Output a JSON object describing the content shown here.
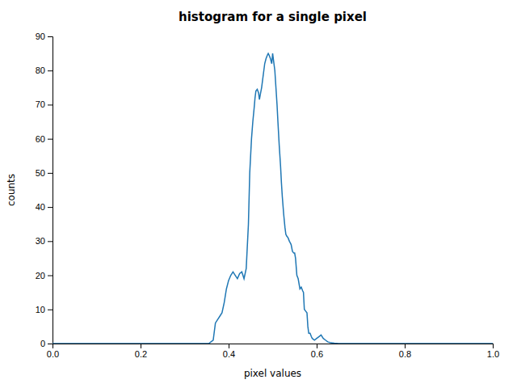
{
  "chart_data": {
    "type": "line",
    "title": "histogram for a single pixel",
    "xlabel": "pixel values",
    "ylabel": "counts",
    "color": "#1f77b4",
    "xlim": [
      0.0,
      1.0
    ],
    "ylim": [
      0,
      90
    ],
    "xticks": [
      {
        "value": 0,
        "label": "0.0"
      },
      {
        "value": 0.2,
        "label": "0.2"
      },
      {
        "value": 0.4,
        "label": "0.4"
      },
      {
        "value": 0.6,
        "label": "0.6"
      },
      {
        "value": 0.8,
        "label": "0.8"
      },
      {
        "value": 1.0,
        "label": "1.0"
      }
    ],
    "yticks": [
      0,
      10,
      20,
      30,
      40,
      50,
      60,
      70,
      80,
      90
    ],
    "x": [
      0.0,
      0.1,
      0.2,
      0.3,
      0.33,
      0.355,
      0.36,
      0.365,
      0.37,
      0.375,
      0.38,
      0.385,
      0.39,
      0.395,
      0.4,
      0.405,
      0.41,
      0.415,
      0.42,
      0.425,
      0.43,
      0.435,
      0.44,
      0.445,
      0.448,
      0.45,
      0.452,
      0.455,
      0.458,
      0.46,
      0.462,
      0.465,
      0.468,
      0.47,
      0.472,
      0.475,
      0.478,
      0.48,
      0.482,
      0.485,
      0.488,
      0.49,
      0.492,
      0.495,
      0.498,
      0.5,
      0.502,
      0.505,
      0.508,
      0.51,
      0.512,
      0.515,
      0.518,
      0.52,
      0.522,
      0.525,
      0.528,
      0.53,
      0.532,
      0.535,
      0.538,
      0.54,
      0.542,
      0.545,
      0.548,
      0.55,
      0.552,
      0.555,
      0.558,
      0.56,
      0.562,
      0.565,
      0.568,
      0.57,
      0.572,
      0.575,
      0.578,
      0.58,
      0.582,
      0.585,
      0.588,
      0.59,
      0.595,
      0.6,
      0.605,
      0.61,
      0.615,
      0.62,
      0.625,
      0.63,
      0.635,
      0.64,
      0.645,
      0.65,
      0.66,
      0.7,
      0.75,
      0.8,
      1.0
    ],
    "values": [
      0.0,
      0.0,
      0.0,
      0.0,
      0.0,
      0.0,
      0.5,
      1.0,
      6.0,
      7.0,
      8.0,
      9.0,
      12.0,
      16.0,
      18.5,
      20.0,
      21.0,
      20.0,
      19.0,
      20.5,
      21.0,
      19.0,
      22.0,
      35.0,
      50.0,
      55.0,
      60.0,
      65.0,
      69.0,
      72.0,
      74.0,
      74.5,
      73.5,
      71.5,
      73.0,
      75.0,
      78.0,
      80.0,
      82.0,
      83.5,
      84.5,
      85.0,
      84.5,
      83.5,
      82.0,
      85.0,
      83.0,
      80.0,
      74.0,
      70.0,
      65.0,
      58.0,
      52.0,
      47.0,
      43.0,
      38.0,
      34.0,
      32.0,
      31.5,
      31.0,
      30.0,
      29.5,
      29.0,
      27.0,
      26.5,
      26.5,
      25.0,
      20.0,
      19.0,
      17.5,
      16.0,
      16.5,
      15.5,
      15.0,
      10.0,
      9.5,
      9.0,
      5.0,
      3.0,
      3.0,
      2.0,
      1.5,
      1.0,
      1.5,
      2.0,
      2.5,
      1.5,
      1.0,
      0.5,
      0.3,
      0.2,
      0.1,
      0.05,
      0.0,
      0.0,
      0.0,
      0.0,
      0.0,
      0.0
    ]
  }
}
